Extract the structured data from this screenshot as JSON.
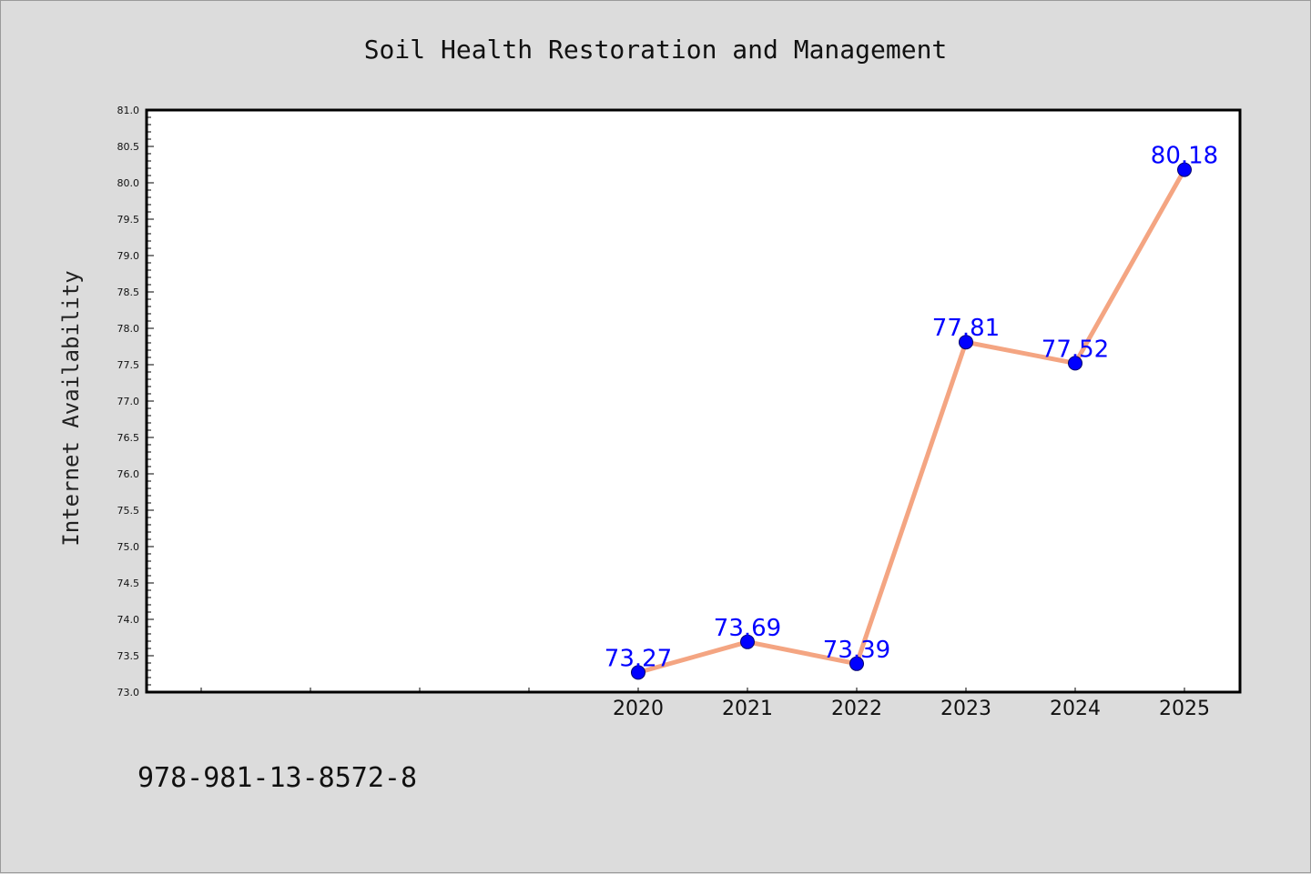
{
  "chart_data": {
    "type": "line",
    "title": "Soil Health Restoration and Management",
    "xlabel": "",
    "ylabel": "Internet Availability",
    "categories": [
      "2020",
      "2021",
      "2022",
      "2023",
      "2024",
      "2025"
    ],
    "series": [
      {
        "values": [
          73.27,
          73.69,
          73.39,
          77.81,
          77.52,
          80.18
        ]
      }
    ],
    "data_labels": [
      "73.27",
      "73.69",
      "73.39",
      "77.81",
      "77.52",
      "80.18"
    ],
    "ylim": [
      73.0,
      81.0
    ],
    "yticks": [
      "73.0",
      "73.5",
      "74.0",
      "74.5",
      "75.0",
      "75.5",
      "76.0",
      "76.5",
      "77.0",
      "77.5",
      "78.0",
      "78.5",
      "79.0",
      "79.5",
      "80.0",
      "80.5",
      "81.0"
    ],
    "grid": false,
    "legend": "none",
    "colors": {
      "line": "#f4a582",
      "marker": "#0000ff",
      "label": "#0000ff",
      "background": "#dcdcdc",
      "plot_background": "#ffffff"
    }
  },
  "footer": {
    "isbn": "978-981-13-8572-8"
  }
}
